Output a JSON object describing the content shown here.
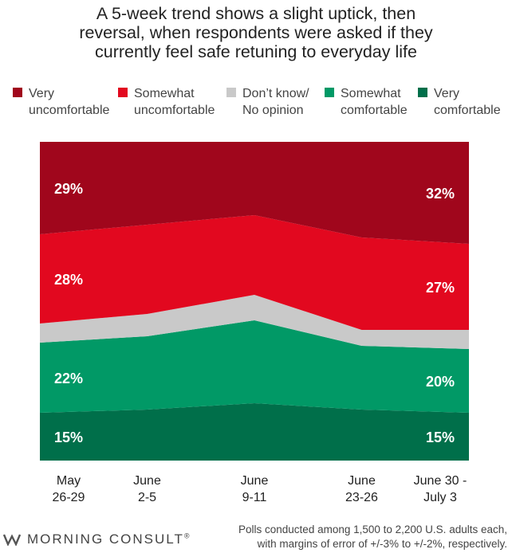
{
  "title_lines": [
    "A 5-week trend shows a slight uptick, then",
    "reversal, when respondents were asked if they",
    "currently feel safe retuning to everyday life"
  ],
  "legend": [
    {
      "label": "Very\nuncomfortable",
      "color": "#a0061c"
    },
    {
      "label": "Somewhat\nuncomfortable",
      "color": "#e2081f"
    },
    {
      "label": "Don’t know/\nNo opinion",
      "color": "#c9c9c9"
    },
    {
      "label": "Somewhat\ncomfortable",
      "color": "#019966"
    },
    {
      "label": "Very\ncomfortable",
      "color": "#006f4a"
    }
  ],
  "chart_data": {
    "type": "area",
    "stacked": "percent",
    "title": "A 5-week trend shows a slight uptick, then reversal, when respondents were asked if they currently feel safe retuning to everyday life",
    "categories": [
      "May\n26-29",
      "June\n2-5",
      "June\n9-11",
      "June\n23-26",
      "June 30 -\nJuly 3"
    ],
    "ylim": [
      0,
      100
    ],
    "series": [
      {
        "name": "Very comfortable",
        "values": [
          15,
          16,
          18,
          16,
          15
        ],
        "color": "#006f4a"
      },
      {
        "name": "Somewhat comfortable",
        "values": [
          22,
          23,
          26,
          20,
          20
        ],
        "color": "#019966"
      },
      {
        "name": "Don’t know/ No opinion",
        "values": [
          6,
          7,
          8,
          5,
          6
        ],
        "color": "#c9c9c9"
      },
      {
        "name": "Somewhat uncomfortable",
        "values": [
          28,
          28,
          25,
          29,
          27
        ],
        "color": "#e2081f"
      },
      {
        "name": "Very uncomfortable",
        "values": [
          29,
          26,
          23,
          30,
          32
        ],
        "color": "#a0061c"
      }
    ],
    "data_labels": [
      {
        "series": 0,
        "point": 0,
        "text": "15%"
      },
      {
        "series": 0,
        "point": 4,
        "text": "15%"
      },
      {
        "series": 1,
        "point": 0,
        "text": "22%"
      },
      {
        "series": 1,
        "point": 4,
        "text": "20%"
      },
      {
        "series": 3,
        "point": 0,
        "text": "28%"
      },
      {
        "series": 3,
        "point": 4,
        "text": "27%"
      },
      {
        "series": 4,
        "point": 0,
        "text": "29%"
      },
      {
        "series": 4,
        "point": 4,
        "text": "32%"
      }
    ]
  },
  "footer": {
    "brand": "MORNING CONSULT",
    "registered_mark": "®",
    "note_lines": [
      "Polls conducted among 1,500 to 2,200 U.S. adults each,",
      "with margins of error of +/-3% to +/-2%, respectively."
    ],
    "brand_color": "#555555"
  }
}
